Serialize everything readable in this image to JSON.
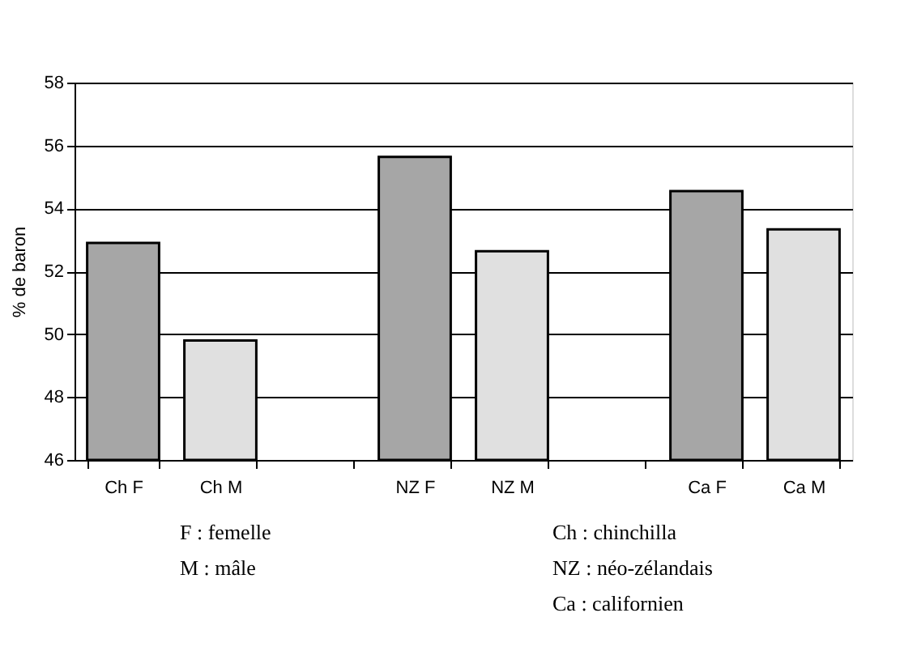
{
  "chart_data": {
    "type": "bar",
    "ylabel": "% de baron",
    "categories": [
      "Ch  F",
      "Ch  M",
      null,
      "NZ   F",
      "NZ  M",
      null,
      "Ca F",
      "Ca M"
    ],
    "values": [
      52.9,
      49.8,
      null,
      55.64,
      52.64,
      null,
      54.55,
      53.33
    ],
    "colors": [
      "#a6a6a6",
      "#e0e0e0",
      null,
      "#a6a6a6",
      "#e0e0e0",
      null,
      "#a6a6a6",
      "#e0e0e0"
    ],
    "ylim": [
      46,
      58
    ],
    "yticks": [
      46,
      48,
      50,
      52,
      54,
      56,
      58
    ],
    "grid": "y",
    "annotations": [
      "F  :  femelle",
      "M  :  mâle",
      "Ch  :  chinchilla",
      "NZ  :  néo-zélandais",
      "Ca  :  californien"
    ]
  }
}
